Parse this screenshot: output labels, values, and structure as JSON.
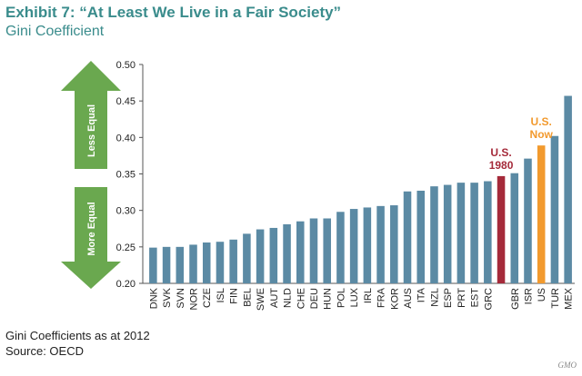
{
  "header": {
    "title": "Exhibit 7: “At Least We Live in a Fair Society”",
    "subtitle": "Gini Coefficient"
  },
  "footer": {
    "note": "Gini Coefficients as at 2012",
    "source": "Source:  OECD",
    "brand": "GMO"
  },
  "arrows": {
    "up_label": "Less Equal",
    "down_label": "More Equal",
    "color": "#6aa84f"
  },
  "colors": {
    "default_bar": "#5b8aa4",
    "us_1980": "#a52a3a",
    "us_now": "#f29a2e"
  },
  "chart_data": {
    "type": "bar",
    "title": "",
    "xlabel": "",
    "ylabel": "",
    "ylim": [
      0.2,
      0.5
    ],
    "yticks": [
      "0.20",
      "0.25",
      "0.30",
      "0.35",
      "0.40",
      "0.45",
      "0.50"
    ],
    "grid": false,
    "categories": [
      "DNK",
      "SVK",
      "SVN",
      "NOR",
      "CZE",
      "ISL",
      "FIN",
      "BEL",
      "SWE",
      "AUT",
      "NLD",
      "CHE",
      "DEU",
      "HUN",
      "POL",
      "LUX",
      "IRL",
      "FRA",
      "KOR",
      "AUS",
      "ITA",
      "NZL",
      "ESP",
      "PRT",
      "EST",
      "GRC",
      "U.S. 1980",
      "GBR",
      "ISR",
      "US",
      "TUR",
      "MEX"
    ],
    "values": [
      0.249,
      0.25,
      0.25,
      0.253,
      0.256,
      0.257,
      0.26,
      0.268,
      0.274,
      0.276,
      0.281,
      0.285,
      0.289,
      0.289,
      0.298,
      0.302,
      0.304,
      0.306,
      0.307,
      0.326,
      0.327,
      0.333,
      0.335,
      0.338,
      0.338,
      0.34,
      0.347,
      0.351,
      0.371,
      0.389,
      0.402,
      0.457
    ],
    "tick_labels": [
      "DNK",
      "SVK",
      "SVN",
      "NOR",
      "CZE",
      "ISL",
      "FIN",
      "BEL",
      "SWE",
      "AUT",
      "NLD",
      "CHE",
      "DEU",
      "HUN",
      "POL",
      "LUX",
      "IRL",
      "FRA",
      "KOR",
      "AUS",
      "ITA",
      "NZL",
      "ESP",
      "PRT",
      "EST",
      "GRC",
      "",
      "GBR",
      "ISR",
      "US",
      "TUR",
      "MEX"
    ],
    "annotations": [
      {
        "category": "U.S. 1980",
        "lines": [
          "U.S.",
          "1980"
        ],
        "color": "#a52a3a"
      },
      {
        "category": "US",
        "lines": [
          "U.S.",
          "Now"
        ],
        "color": "#f29a2e"
      }
    ]
  }
}
